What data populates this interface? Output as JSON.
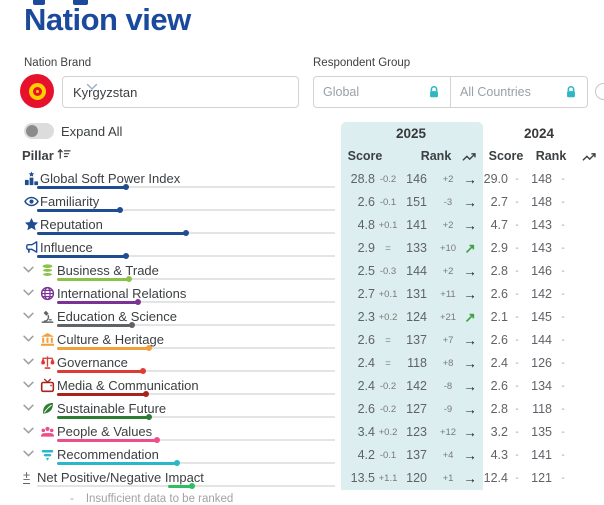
{
  "page": {
    "title": "Nation view"
  },
  "filters": {
    "nation_brand_label": "Nation Brand",
    "nation_brand_value": "Kyrgyzstan",
    "respondent_group_label": "Respondent Group",
    "respondent_options": [
      {
        "label": "Global",
        "locked": true
      },
      {
        "label": "All Countries",
        "locked": true
      }
    ]
  },
  "controls": {
    "expand_all_label": "Expand All",
    "expand_all_on": false
  },
  "colors": {
    "title_navy": "#1b4a9c",
    "teal_panel": "#dceef0",
    "lock_teal": "#2fb5c4",
    "flag_red": "#e8112d",
    "flag_yellow": "#ffcf00",
    "trend_up_green": "#43a047",
    "trend_flat_black": "#1b1b1b"
  },
  "table": {
    "pillar_header": "Pillar",
    "year_2025": "2025",
    "year_2024": "2024",
    "score_header": "Score",
    "rank_header": "Rank",
    "footnote_dash": "-",
    "footnote": "Insufficient data to be ranked",
    "rows": [
      {
        "label": "Global Soft Power Index",
        "icon": "podium-chart",
        "color": "#1f4d8f",
        "level": "top",
        "bar": {
          "start_pct": 0,
          "end_pct": 30
        },
        "y2025": {
          "score": "28.8",
          "score_chg": "-0.2",
          "rank": "146",
          "rank_chg": "+2",
          "trend": "flat"
        },
        "y2024": {
          "score": "29.0",
          "score_chg": "-",
          "rank": "148",
          "rank_chg": "-"
        }
      },
      {
        "label": "Familiarity",
        "icon": "eye",
        "color": "#1f4d8f",
        "level": "top",
        "bar": {
          "start_pct": 0,
          "end_pct": 28
        },
        "y2025": {
          "score": "2.6",
          "score_chg": "-0.1",
          "rank": "151",
          "rank_chg": "-3",
          "trend": "flat"
        },
        "y2024": {
          "score": "2.7",
          "score_chg": "-",
          "rank": "148",
          "rank_chg": "-"
        }
      },
      {
        "label": "Reputation",
        "icon": "star",
        "color": "#1f4d8f",
        "level": "top",
        "bar": {
          "start_pct": 0,
          "end_pct": 50
        },
        "y2025": {
          "score": "4.8",
          "score_chg": "+0.1",
          "rank": "141",
          "rank_chg": "+2",
          "trend": "flat"
        },
        "y2024": {
          "score": "4.7",
          "score_chg": "-",
          "rank": "143",
          "rank_chg": "-"
        }
      },
      {
        "label": "Influence",
        "icon": "megaphone",
        "color": "#1f4d8f",
        "level": "top",
        "bar": {
          "start_pct": 0,
          "end_pct": 30
        },
        "y2025": {
          "score": "2.9",
          "score_chg": "=",
          "rank": "133",
          "rank_chg": "+10",
          "trend": "up"
        },
        "y2024": {
          "score": "2.9",
          "score_chg": "-",
          "rank": "143",
          "rank_chg": "-"
        }
      },
      {
        "label": "Business & Trade",
        "icon": "coins",
        "color": "#8bc34a",
        "level": "sub",
        "bar": {
          "start_pct": 0,
          "end_pct": 26
        },
        "y2025": {
          "score": "2.5",
          "score_chg": "-0.3",
          "rank": "144",
          "rank_chg": "+2",
          "trend": "flat"
        },
        "y2024": {
          "score": "2.8",
          "score_chg": "-",
          "rank": "146",
          "rank_chg": "-"
        }
      },
      {
        "label": "International Relations",
        "icon": "globe",
        "color": "#7b3294",
        "level": "sub",
        "bar": {
          "start_pct": 0,
          "end_pct": 29
        },
        "y2025": {
          "score": "2.7",
          "score_chg": "+0.1",
          "rank": "131",
          "rank_chg": "+11",
          "trend": "flat"
        },
        "y2024": {
          "score": "2.6",
          "score_chg": "-",
          "rank": "142",
          "rank_chg": "-"
        }
      },
      {
        "label": "Education & Science",
        "icon": "microscope",
        "color": "#5f6368",
        "level": "sub",
        "bar": {
          "start_pct": 0,
          "end_pct": 27
        },
        "y2025": {
          "score": "2.3",
          "score_chg": "+0.2",
          "rank": "124",
          "rank_chg": "+21",
          "trend": "up"
        },
        "y2024": {
          "score": "2.1",
          "score_chg": "-",
          "rank": "145",
          "rank_chg": "-"
        }
      },
      {
        "label": "Culture & Heritage",
        "icon": "museum",
        "color": "#f0a13e",
        "level": "sub",
        "bar": {
          "start_pct": 0,
          "end_pct": 33
        },
        "y2025": {
          "score": "2.6",
          "score_chg": "=",
          "rank": "137",
          "rank_chg": "+7",
          "trend": "flat"
        },
        "y2024": {
          "score": "2.6",
          "score_chg": "-",
          "rank": "144",
          "rank_chg": "-"
        }
      },
      {
        "label": "Governance",
        "icon": "scales",
        "color": "#e03a34",
        "level": "sub",
        "bar": {
          "start_pct": 0,
          "end_pct": 31
        },
        "y2025": {
          "score": "2.4",
          "score_chg": "=",
          "rank": "118",
          "rank_chg": "+8",
          "trend": "flat"
        },
        "y2024": {
          "score": "2.4",
          "score_chg": "-",
          "rank": "126",
          "rank_chg": "-"
        }
      },
      {
        "label": "Media & Communication",
        "icon": "tv",
        "color": "#a8231d",
        "level": "sub",
        "bar": {
          "start_pct": 0,
          "end_pct": 32
        },
        "y2025": {
          "score": "2.4",
          "score_chg": "-0.2",
          "rank": "142",
          "rank_chg": "-8",
          "trend": "flat"
        },
        "y2024": {
          "score": "2.6",
          "score_chg": "-",
          "rank": "134",
          "rank_chg": "-"
        }
      },
      {
        "label": "Sustainable Future",
        "icon": "leaf",
        "color": "#2e7d32",
        "level": "sub",
        "bar": {
          "start_pct": 0,
          "end_pct": 33
        },
        "y2025": {
          "score": "2.6",
          "score_chg": "-0.2",
          "rank": "127",
          "rank_chg": "-9",
          "trend": "flat"
        },
        "y2024": {
          "score": "2.8",
          "score_chg": "-",
          "rank": "118",
          "rank_chg": "-"
        }
      },
      {
        "label": "People & Values",
        "icon": "people",
        "color": "#ee4d8b",
        "level": "sub",
        "bar": {
          "start_pct": 0,
          "end_pct": 36
        },
        "y2025": {
          "score": "3.4",
          "score_chg": "+0.2",
          "rank": "123",
          "rank_chg": "+12",
          "trend": "flat"
        },
        "y2024": {
          "score": "3.2",
          "score_chg": "-",
          "rank": "135",
          "rank_chg": "-"
        }
      },
      {
        "label": "Recommendation",
        "icon": "bars",
        "color": "#29b7c9",
        "level": "sub",
        "bar": {
          "start_pct": 0,
          "end_pct": 43
        },
        "y2025": {
          "score": "4.2",
          "score_chg": "-0.1",
          "rank": "137",
          "rank_chg": "+4",
          "trend": "flat"
        },
        "y2024": {
          "score": "4.3",
          "score_chg": "-",
          "rank": "141",
          "rank_chg": "-"
        }
      },
      {
        "label": "Net Positive/Negative Impact",
        "icon": "plus-minus",
        "color": "#2dbe60",
        "level": "net",
        "bar": {
          "start_pct": 44,
          "end_pct": 52
        },
        "y2025": {
          "score": "13.5",
          "score_chg": "+1.1",
          "rank": "120",
          "rank_chg": "+1",
          "trend": "flat"
        },
        "y2024": {
          "score": "12.4",
          "score_chg": "-",
          "rank": "121",
          "rank_chg": "-"
        }
      }
    ]
  }
}
